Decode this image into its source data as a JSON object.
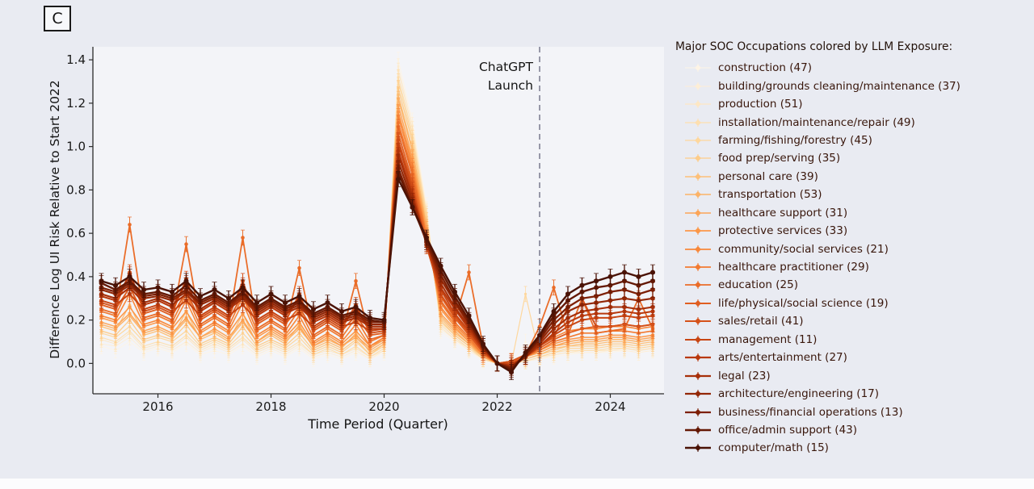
{
  "panel_label": "C",
  "annotation": {
    "line1": "ChatGPT",
    "line2": "Launch",
    "x": 2022.75
  },
  "axes": {
    "xlabel": "Time Period (Quarter)",
    "ylabel": "Difference Log UI Risk Relative to Start 2022",
    "x_ticks": [
      2016,
      2018,
      2020,
      2022,
      2024
    ],
    "y_ticks": [
      0.0,
      0.2,
      0.4,
      0.6,
      0.8,
      1.0,
      1.2,
      1.4
    ],
    "xlim": [
      2014.85,
      2024.95
    ],
    "ylim": [
      -0.14,
      1.46
    ]
  },
  "legend": {
    "title": "Major SOC Occupations colored by LLM Exposure:"
  },
  "colors": {
    "background": "#e9ebf2",
    "plot_bg": "#f3f4f8",
    "text": "#1a1a1a",
    "legend_text": "#38160b",
    "dashed_line": "#62627a"
  },
  "chart_data": {
    "type": "line",
    "title": "",
    "xlabel": "Time Period (Quarter)",
    "ylabel": "Difference Log UI Risk Relative to Start 2022",
    "error_bar": 0.035,
    "x": [
      2015,
      2015.25,
      2015.5,
      2015.75,
      2016,
      2016.25,
      2016.5,
      2016.75,
      2017,
      2017.25,
      2017.5,
      2017.75,
      2018,
      2018.25,
      2018.5,
      2018.75,
      2019,
      2019.25,
      2019.5,
      2019.75,
      2020,
      2020.25,
      2020.5,
      2020.75,
      2021,
      2021.25,
      2021.5,
      2021.75,
      2022,
      2022.25,
      2022.5,
      2022.75,
      2023,
      2023.25,
      2023.5,
      2023.75,
      2024,
      2024.25,
      2024.5,
      2024.75
    ],
    "series": [
      {
        "name": "construction (47)",
        "color": "#fdf4e5",
        "values": [
          0.08,
          0.06,
          0.1,
          0.05,
          0.07,
          0.05,
          0.09,
          0.04,
          0.06,
          0.04,
          0.08,
          0.03,
          0.06,
          0.03,
          0.07,
          0.02,
          0.04,
          0.02,
          0.05,
          0.02,
          0.05,
          1.4,
          1.12,
          0.73,
          0.15,
          0.1,
          0.06,
          0.01,
          0.0,
          0.0,
          0.1,
          0.02,
          0.03,
          0.04,
          0.05,
          0.05,
          0.05,
          0.06,
          0.05,
          0.06
        ]
      },
      {
        "name": "building/grounds cleaning/maintenance (37)",
        "color": "#fdeed6",
        "values": [
          0.09,
          0.08,
          0.12,
          0.06,
          0.08,
          0.06,
          0.1,
          0.05,
          0.08,
          0.05,
          0.09,
          0.04,
          0.07,
          0.04,
          0.08,
          0.03,
          0.05,
          0.03,
          0.06,
          0.02,
          0.06,
          1.37,
          1.1,
          0.71,
          0.16,
          0.11,
          0.06,
          0.02,
          0.0,
          0.0,
          0.01,
          0.02,
          0.04,
          0.05,
          0.05,
          0.05,
          0.06,
          0.06,
          0.05,
          0.06
        ]
      },
      {
        "name": "production (51)",
        "color": "#fde7c4",
        "values": [
          0.11,
          0.09,
          0.14,
          0.07,
          0.09,
          0.07,
          0.12,
          0.06,
          0.09,
          0.06,
          0.11,
          0.05,
          0.08,
          0.05,
          0.09,
          0.04,
          0.06,
          0.04,
          0.07,
          0.03,
          0.06,
          1.35,
          1.08,
          0.7,
          0.17,
          0.11,
          0.07,
          0.02,
          0.0,
          0.0,
          0.01,
          0.03,
          0.04,
          0.05,
          0.06,
          0.06,
          0.06,
          0.07,
          0.06,
          0.07
        ]
      },
      {
        "name": "installation/maintenance/repair (49)",
        "color": "#fddfb0",
        "values": [
          0.12,
          0.1,
          0.15,
          0.08,
          0.1,
          0.08,
          0.13,
          0.07,
          0.1,
          0.07,
          0.12,
          0.06,
          0.09,
          0.06,
          0.1,
          0.04,
          0.07,
          0.04,
          0.08,
          0.03,
          0.07,
          1.32,
          1.06,
          0.69,
          0.18,
          0.12,
          0.07,
          0.02,
          0.0,
          0.0,
          0.01,
          0.03,
          0.05,
          0.06,
          0.06,
          0.06,
          0.07,
          0.07,
          0.06,
          0.07
        ]
      },
      {
        "name": "farming/fishing/forestry (45)",
        "color": "#fed79d",
        "values": [
          0.14,
          0.12,
          0.17,
          0.1,
          0.12,
          0.1,
          0.15,
          0.08,
          0.11,
          0.08,
          0.14,
          0.07,
          0.1,
          0.07,
          0.12,
          0.05,
          0.08,
          0.05,
          0.1,
          0.04,
          0.08,
          1.3,
          1.04,
          0.68,
          0.19,
          0.13,
          0.08,
          0.02,
          0.0,
          0.0,
          0.32,
          0.03,
          0.05,
          0.07,
          0.07,
          0.07,
          0.08,
          0.08,
          0.07,
          0.08
        ]
      },
      {
        "name": "food prep/serving (35)",
        "color": "#fdcc8a",
        "values": [
          0.15,
          0.13,
          0.2,
          0.11,
          0.13,
          0.11,
          0.18,
          0.09,
          0.12,
          0.09,
          0.17,
          0.08,
          0.11,
          0.08,
          0.14,
          0.06,
          0.09,
          0.06,
          0.11,
          0.04,
          0.09,
          1.27,
          1.02,
          0.66,
          0.2,
          0.13,
          0.08,
          0.03,
          0.0,
          0.0,
          0.02,
          0.04,
          0.06,
          0.08,
          0.08,
          0.08,
          0.09,
          0.09,
          0.08,
          0.09
        ]
      },
      {
        "name": "personal care (39)",
        "color": "#fdc079",
        "values": [
          0.17,
          0.15,
          0.27,
          0.13,
          0.15,
          0.12,
          0.24,
          0.11,
          0.14,
          0.1,
          0.23,
          0.09,
          0.13,
          0.09,
          0.18,
          0.07,
          0.1,
          0.07,
          0.14,
          0.05,
          0.09,
          1.24,
          0.99,
          0.64,
          0.21,
          0.14,
          0.09,
          0.03,
          0.0,
          0.01,
          0.02,
          0.04,
          0.07,
          0.08,
          0.09,
          0.09,
          0.1,
          0.1,
          0.09,
          0.1
        ]
      },
      {
        "name": "transportation (53)",
        "color": "#fcb368",
        "values": [
          0.18,
          0.16,
          0.22,
          0.14,
          0.16,
          0.13,
          0.2,
          0.12,
          0.15,
          0.11,
          0.19,
          0.1,
          0.14,
          0.1,
          0.16,
          0.08,
          0.11,
          0.08,
          0.12,
          0.06,
          0.1,
          1.22,
          0.98,
          0.63,
          0.22,
          0.15,
          0.09,
          0.03,
          0.0,
          0.01,
          0.03,
          0.05,
          0.08,
          0.09,
          0.1,
          0.1,
          0.11,
          0.11,
          0.1,
          0.11
        ]
      },
      {
        "name": "healthcare support (31)",
        "color": "#fca558",
        "values": [
          0.19,
          0.17,
          0.23,
          0.15,
          0.17,
          0.14,
          0.21,
          0.12,
          0.16,
          0.12,
          0.2,
          0.1,
          0.15,
          0.11,
          0.17,
          0.08,
          0.12,
          0.08,
          0.13,
          0.07,
          0.11,
          1.19,
          0.95,
          0.62,
          0.23,
          0.16,
          0.1,
          0.03,
          0.0,
          0.01,
          0.03,
          0.05,
          0.08,
          0.1,
          0.11,
          0.11,
          0.12,
          0.12,
          0.11,
          0.12
        ]
      },
      {
        "name": "protective services (33)",
        "color": "#fc9748",
        "values": [
          0.21,
          0.19,
          0.26,
          0.17,
          0.19,
          0.16,
          0.24,
          0.14,
          0.18,
          0.14,
          0.23,
          0.12,
          0.16,
          0.12,
          0.19,
          0.09,
          0.13,
          0.09,
          0.15,
          0.08,
          0.11,
          1.16,
          0.93,
          0.6,
          0.25,
          0.17,
          0.1,
          0.04,
          0.0,
          0.01,
          0.03,
          0.06,
          0.09,
          0.11,
          0.12,
          0.12,
          0.13,
          0.13,
          0.12,
          0.13
        ]
      },
      {
        "name": "community/social services (21)",
        "color": "#f8883b",
        "values": [
          0.22,
          0.2,
          0.32,
          0.18,
          0.2,
          0.17,
          0.29,
          0.15,
          0.19,
          0.15,
          0.28,
          0.13,
          0.17,
          0.13,
          0.22,
          0.1,
          0.14,
          0.1,
          0.18,
          0.08,
          0.12,
          1.14,
          0.91,
          0.59,
          0.26,
          0.18,
          0.11,
          0.04,
          0.0,
          0.01,
          0.04,
          0.08,
          0.12,
          0.15,
          0.16,
          0.16,
          0.17,
          0.17,
          0.16,
          0.17
        ]
      },
      {
        "name": "healthcare practitioner (29)",
        "color": "#f27a31",
        "values": [
          0.24,
          0.22,
          0.36,
          0.2,
          0.22,
          0.19,
          0.32,
          0.17,
          0.21,
          0.17,
          0.31,
          0.15,
          0.19,
          0.15,
          0.25,
          0.12,
          0.16,
          0.12,
          0.21,
          0.1,
          0.13,
          1.11,
          0.89,
          0.58,
          0.28,
          0.19,
          0.12,
          0.04,
          0.0,
          0.01,
          0.03,
          0.06,
          0.1,
          0.12,
          0.14,
          0.14,
          0.15,
          0.15,
          0.14,
          0.15
        ]
      },
      {
        "name": "education (25)",
        "color": "#ea6c28",
        "values": [
          0.25,
          0.23,
          0.64,
          0.21,
          0.23,
          0.2,
          0.55,
          0.18,
          0.22,
          0.18,
          0.58,
          0.16,
          0.2,
          0.16,
          0.44,
          0.13,
          0.17,
          0.13,
          0.38,
          0.11,
          0.13,
          1.09,
          0.87,
          0.57,
          0.29,
          0.2,
          0.42,
          0.08,
          0.0,
          0.01,
          0.04,
          0.17,
          0.35,
          0.13,
          0.3,
          0.14,
          0.15,
          0.16,
          0.3,
          0.16
        ]
      },
      {
        "name": "life/physical/social science (19)",
        "color": "#e05e20",
        "values": [
          0.27,
          0.25,
          0.35,
          0.23,
          0.25,
          0.22,
          0.33,
          0.2,
          0.24,
          0.2,
          0.32,
          0.18,
          0.22,
          0.18,
          0.26,
          0.15,
          0.19,
          0.15,
          0.22,
          0.13,
          0.14,
          1.06,
          0.84,
          0.55,
          0.31,
          0.21,
          0.13,
          0.05,
          0.0,
          0.0,
          0.03,
          0.07,
          0.11,
          0.14,
          0.16,
          0.17,
          0.17,
          0.18,
          0.17,
          0.18
        ]
      },
      {
        "name": "sales/retail (41)",
        "color": "#d55119",
        "values": [
          0.28,
          0.26,
          0.42,
          0.24,
          0.26,
          0.23,
          0.39,
          0.21,
          0.25,
          0.21,
          0.38,
          0.19,
          0.23,
          0.19,
          0.32,
          0.16,
          0.2,
          0.16,
          0.27,
          0.14,
          0.15,
          1.03,
          0.82,
          0.54,
          0.32,
          0.22,
          0.14,
          0.05,
          0.0,
          0.01,
          0.04,
          0.08,
          0.12,
          0.26,
          0.3,
          0.17,
          0.17,
          0.18,
          0.17,
          0.18
        ]
      },
      {
        "name": "management (11)",
        "color": "#c84513",
        "values": [
          0.29,
          0.27,
          0.32,
          0.25,
          0.27,
          0.24,
          0.29,
          0.22,
          0.26,
          0.22,
          0.27,
          0.2,
          0.24,
          0.2,
          0.23,
          0.17,
          0.21,
          0.17,
          0.19,
          0.15,
          0.16,
          1.01,
          0.8,
          0.55,
          0.34,
          0.23,
          0.15,
          0.06,
          0.0,
          0.0,
          0.03,
          0.08,
          0.13,
          0.17,
          0.2,
          0.21,
          0.21,
          0.22,
          0.21,
          0.22
        ]
      },
      {
        "name": "arts/entertainment (27)",
        "color": "#b9390d",
        "values": [
          0.31,
          0.29,
          0.41,
          0.27,
          0.29,
          0.26,
          0.37,
          0.24,
          0.28,
          0.24,
          0.36,
          0.22,
          0.26,
          0.22,
          0.3,
          0.19,
          0.22,
          0.18,
          0.25,
          0.16,
          0.16,
          0.98,
          0.78,
          0.55,
          0.35,
          0.25,
          0.16,
          0.06,
          0.0,
          -0.01,
          0.03,
          0.08,
          0.14,
          0.19,
          0.22,
          0.23,
          0.23,
          0.24,
          0.23,
          0.24
        ]
      },
      {
        "name": "legal (23)",
        "color": "#a72f09",
        "values": [
          0.32,
          0.3,
          0.35,
          0.28,
          0.3,
          0.27,
          0.32,
          0.25,
          0.29,
          0.25,
          0.3,
          0.23,
          0.27,
          0.23,
          0.26,
          0.2,
          0.23,
          0.19,
          0.21,
          0.17,
          0.17,
          0.96,
          0.77,
          0.56,
          0.37,
          0.26,
          0.17,
          0.07,
          0.0,
          -0.01,
          0.03,
          0.09,
          0.16,
          0.21,
          0.24,
          0.25,
          0.26,
          0.26,
          0.25,
          0.26
        ]
      },
      {
        "name": "architecture/engineering (17)",
        "color": "#932706",
        "values": [
          0.34,
          0.32,
          0.36,
          0.3,
          0.31,
          0.29,
          0.33,
          0.27,
          0.3,
          0.26,
          0.31,
          0.24,
          0.28,
          0.24,
          0.27,
          0.21,
          0.24,
          0.2,
          0.22,
          0.18,
          0.18,
          0.93,
          0.75,
          0.56,
          0.39,
          0.28,
          0.18,
          0.07,
          0.0,
          -0.02,
          0.03,
          0.1,
          0.18,
          0.24,
          0.27,
          0.28,
          0.29,
          0.3,
          0.29,
          0.3
        ]
      },
      {
        "name": "business/financial operations (13)",
        "color": "#7d1f04",
        "values": [
          0.35,
          0.33,
          0.37,
          0.31,
          0.32,
          0.3,
          0.34,
          0.28,
          0.31,
          0.27,
          0.32,
          0.25,
          0.29,
          0.25,
          0.28,
          0.22,
          0.25,
          0.21,
          0.23,
          0.19,
          0.19,
          0.9,
          0.73,
          0.56,
          0.41,
          0.29,
          0.19,
          0.08,
          0.0,
          -0.02,
          0.04,
          0.11,
          0.2,
          0.26,
          0.3,
          0.31,
          0.33,
          0.34,
          0.32,
          0.34
        ]
      },
      {
        "name": "office/admin support (43)",
        "color": "#641804",
        "values": [
          0.37,
          0.34,
          0.38,
          0.32,
          0.33,
          0.31,
          0.36,
          0.29,
          0.32,
          0.28,
          0.33,
          0.26,
          0.3,
          0.26,
          0.29,
          0.23,
          0.26,
          0.22,
          0.24,
          0.2,
          0.19,
          0.88,
          0.72,
          0.57,
          0.43,
          0.31,
          0.2,
          0.08,
          0.0,
          -0.03,
          0.04,
          0.12,
          0.22,
          0.29,
          0.33,
          0.35,
          0.36,
          0.38,
          0.36,
          0.38
        ]
      },
      {
        "name": "computer/math (15)",
        "color": "#4a1205",
        "values": [
          0.38,
          0.36,
          0.4,
          0.34,
          0.35,
          0.33,
          0.38,
          0.31,
          0.34,
          0.3,
          0.35,
          0.28,
          0.32,
          0.28,
          0.31,
          0.25,
          0.28,
          0.24,
          0.26,
          0.21,
          0.2,
          0.85,
          0.72,
          0.58,
          0.45,
          0.33,
          0.22,
          0.09,
          0.0,
          -0.04,
          0.05,
          0.13,
          0.24,
          0.32,
          0.36,
          0.38,
          0.4,
          0.42,
          0.4,
          0.42
        ]
      }
    ]
  }
}
